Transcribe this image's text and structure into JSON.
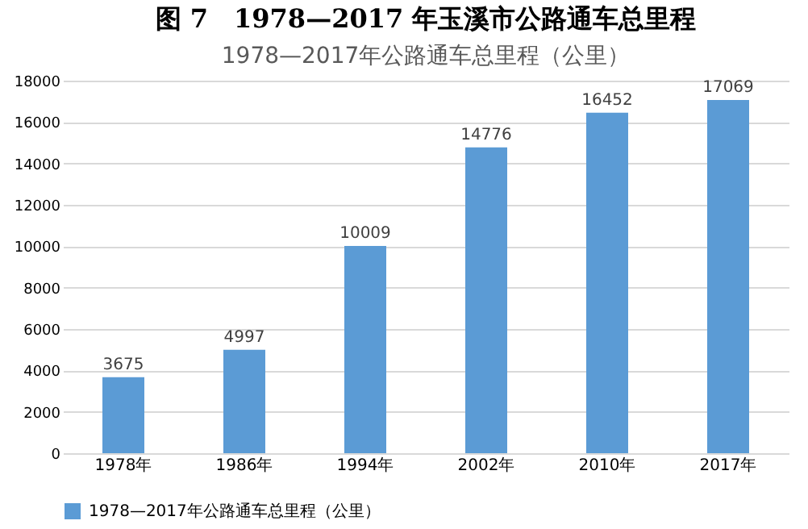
{
  "chart_data": {
    "type": "bar",
    "title": "图 7　1978—2017 年玉溪市公路通车总里程",
    "subtitle": "1978—2017年公路通车总里程（公里）",
    "categories": [
      "1978年",
      "1986年",
      "1994年",
      "2002年",
      "2010年",
      "2017年"
    ],
    "series": [
      {
        "name": "1978—2017年公路通车总里程（公里）",
        "color": "#5b9bd5",
        "values": [
          3675,
          4997,
          10009,
          14776,
          16452,
          17069
        ]
      }
    ],
    "ylim": [
      0,
      18000
    ],
    "yticks": [
      0,
      2000,
      4000,
      6000,
      8000,
      10000,
      12000,
      14000,
      16000,
      18000
    ],
    "grid": "y",
    "legend": "bottom",
    "data_labels": true
  }
}
